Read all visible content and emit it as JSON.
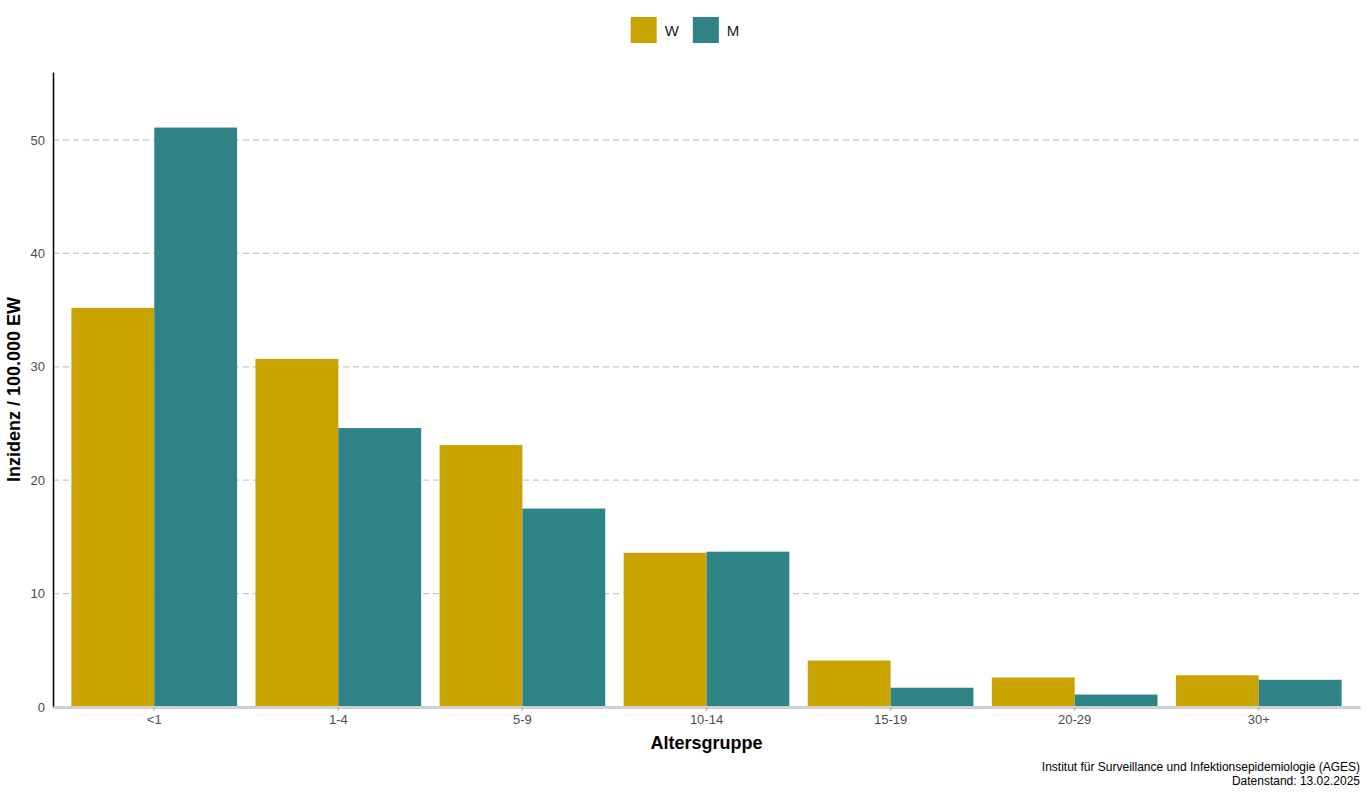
{
  "chart_data": {
    "type": "bar",
    "x_label": "Altersgruppe",
    "y_label": "Inzidenz / 100.000 EW",
    "categories": [
      "<1",
      "1-4",
      "5-9",
      "10-14",
      "15-19",
      "20-29",
      "30+"
    ],
    "series": [
      {
        "name": "W",
        "color": "#c9a300",
        "values": [
          35.2,
          30.7,
          23.1,
          13.6,
          4.1,
          2.6,
          2.8
        ]
      },
      {
        "name": "M",
        "color": "#2e8387",
        "values": [
          51.1,
          24.6,
          17.5,
          13.7,
          1.7,
          1.1,
          2.4
        ]
      }
    ],
    "ylim": [
      0,
      56
    ],
    "yticks": [
      0,
      10,
      20,
      30,
      40,
      50
    ],
    "grid": true,
    "legend": "top",
    "annotations": [
      "Institut für Surveillance und Infektionsepidemiologie (AGES)",
      "Datenstand: 13.02.2025"
    ]
  }
}
